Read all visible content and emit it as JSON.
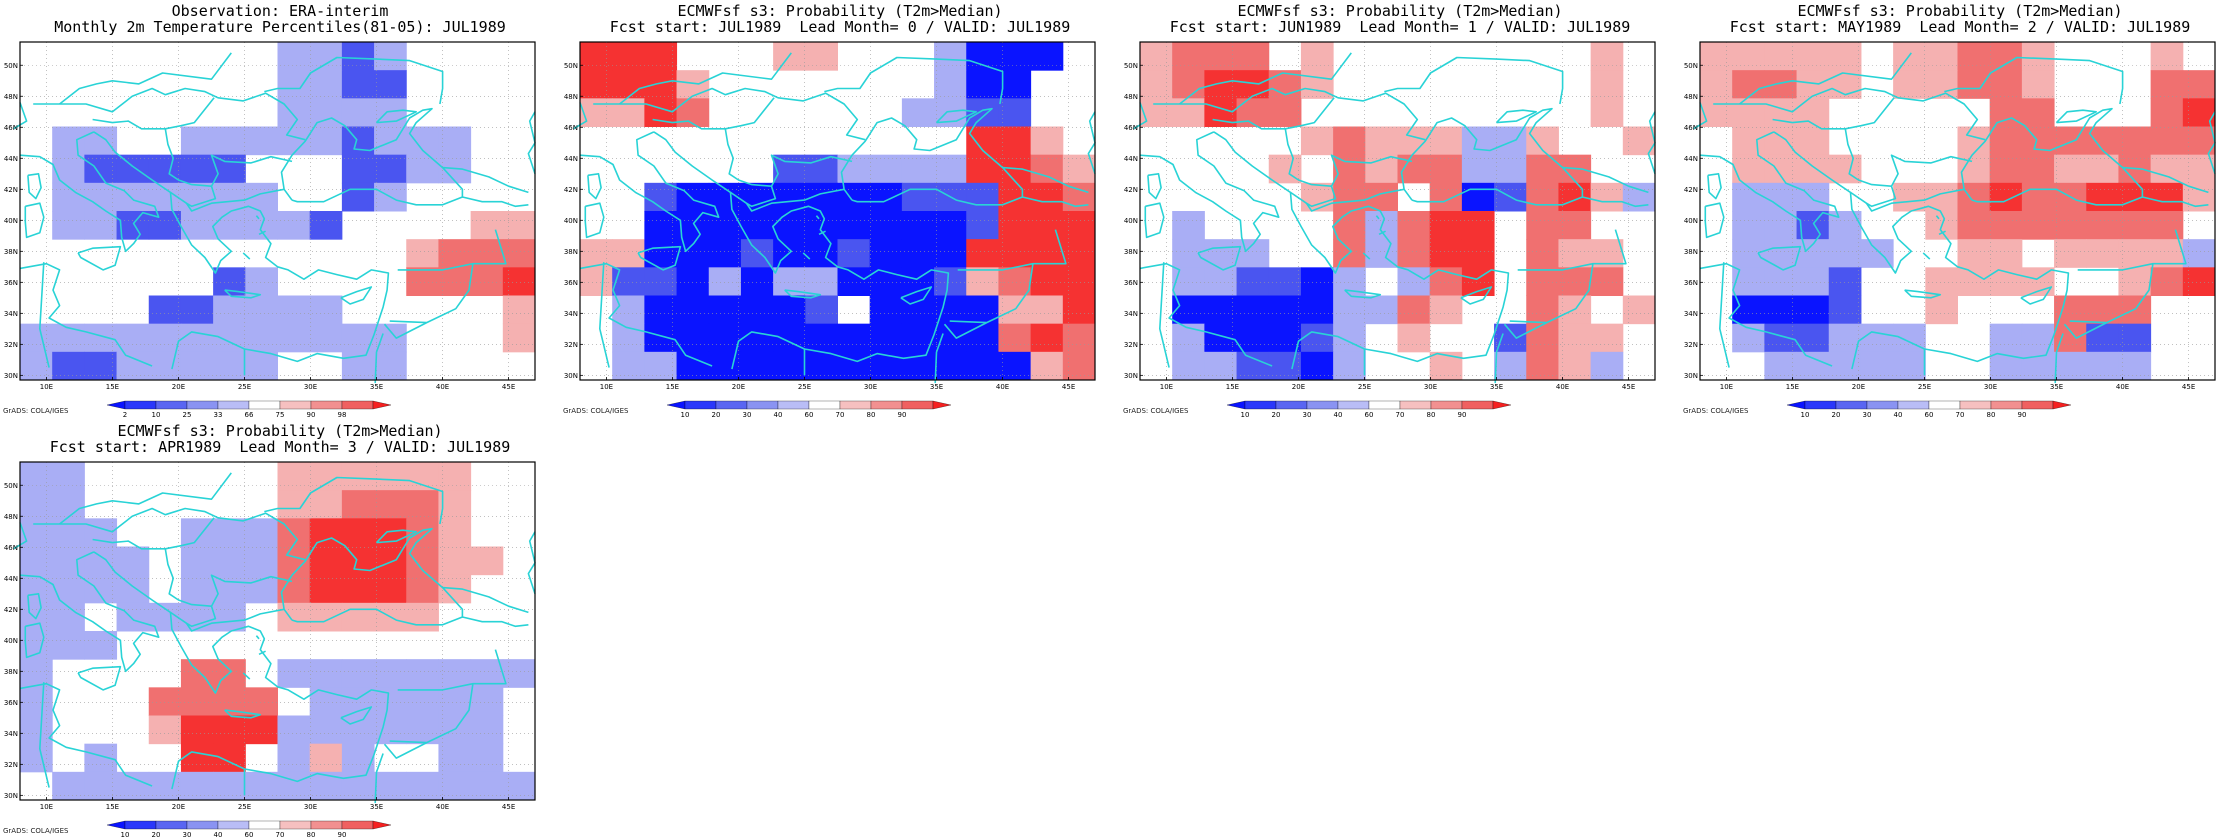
{
  "credit": "GrADS: COLA/IGES",
  "map": {
    "lon_labels": [
      "10E",
      "15E",
      "20E",
      "25E",
      "30E",
      "35E",
      "40E",
      "45E"
    ],
    "lat_labels": [
      "30N",
      "32N",
      "34N",
      "36N",
      "38N",
      "40N",
      "42N",
      "44N",
      "46N",
      "48N",
      "50N"
    ],
    "coast_color": "#29d3d6"
  },
  "colors": {
    "b3": "#0a14ff",
    "b2": "#4050f5",
    "b1": "#7882f0",
    "b0": "#b4b9f5",
    "w": "#ffffff",
    "r0": "#f5b4b4",
    "r1": "#f07878",
    "r2": "#f04646",
    "r3": "#ff1010"
  },
  "panels": [
    {
      "title1": "Observation: ERA-interim",
      "title2": "Monthly 2m Temperature Percentiles(81-05): JUL1989",
      "colorbar": [
        "2",
        "10",
        "25",
        "33",
        "66",
        "75",
        "90",
        "98"
      ],
      "grid": [
        "wwwwwwwwbbcbwwww",
        "wwwwwwwwbbccwwww",
        "wwwwwwwwbbbbwwww",
        "wbbwwbbbbbcbbbww",
        "wbcccccwwwccbbww",
        "wbbbbbbbwwcbwwww",
        "wbbccbbbbcwwwwpp",
        "wwwwwwwwwwwwpqqq",
        "wwwwwwcbwwwwqqqr",
        "wwwwccbbbbwwwwwp",
        "bbbbbbbbbbbbwwwp",
        "bccbbbbbwwbbwwww"
      ]
    },
    {
      "title1": "ECMWFsf s3: Probability (T2m>Median)",
      "title2": "Fcst start: JUL1989  Lead Month= 0 / VALID: JUL1989",
      "colorbar": [
        "10",
        "20",
        "30",
        "40",
        "60",
        "70",
        "80",
        "90"
      ],
      "grid": [
        "rrrwwwppwwwbdddw",
        "rrrpwwwwwwwbddww",
        "pprqwwwwwwbbccww",
        "wwwwwwwwwwwwrrpw",
        "wwwwwwccbbbbrrqp",
        "wwcdddddddcccrrq",
        "wwddddddddddcrrr",
        "ppdddcddcdddrrrr",
        "pccdbdbbdddcpqrr",
        "wbdddddcwddddppr",
        "wbdddddddddddqrq",
        "wbbdddddddddddpq"
      ]
    },
    {
      "title1": "ECMWFsf s3: Probability (T2m>Median)",
      "title2": "Fcst start: JUN1989  Lead Month= 1 / VALID: JUL1989",
      "colorbar": [
        "10",
        "20",
        "30",
        "40",
        "60",
        "70",
        "80",
        "90"
      ],
      "grid": [
        "pqqqwpwwwwwwwwpw",
        "pqrrqpwwwwwwwwpw",
        "pprqqwwwwwwwwwpw",
        "wwwwwpqpppbbpwwp",
        "wwwwpwqpqqbbqqww",
        "wwwwwpqqwqdcqrpb",
        "wbwwwwqbqrrwqqww",
        "wbbbwwqbqrrwqppw",
        "wbbccdbwbqrwqqqw",
        "wdddddbbqpwwqpwp",
        "wbdddcbwpwwcqppw",
        "wbbccdbwwpwbqpbw"
      ]
    },
    {
      "title1": "ECMWFsf s3: Probability (T2m>Median)",
      "title2": "Fcst start: MAY1989  Lead Month= 2 / VALID: JUL1989",
      "colorbar": [
        "10",
        "20",
        "30",
        "40",
        "60",
        "70",
        "80",
        "90"
      ],
      "grid": [
        "pppppwppqqpwwwpw",
        "pqqppwppqqpwwwqq",
        "ppppwwwwwqqwwwqr",
        "wpppwwwwpqqqqqqq",
        "wppppwwwpqqppqpp",
        "wbbbwwppqrqqrrrp",
        "wbbcbwwpqqqqqqqw",
        "wbbbbbwwppwppppb",
        "wbbbcwwppppwwpqr",
        "wdddcwwpwwwqqqww",
        "wbccbbbwwbbqccww",
        "wwbbbbbwwbbbbbww"
      ]
    },
    {
      "title1": "ECMWFsf s3: Probability (T2m>Median)",
      "title2": "Fcst start: APR1989  Lead Month= 3 / VALID: JUL1989",
      "colorbar": [
        "10",
        "20",
        "30",
        "40",
        "60",
        "70",
        "80",
        "90"
      ],
      "grid": [
        "bbwwwwwwppppppww",
        "bbwwwwwwppqqqpww",
        "bbbwwbbbqrrrqpww",
        "bbbbwbbbqrrrqppw",
        "bbbbwbbbqrrrqpww",
        "bbwbbbbwpppppwww",
        "bbbwwwwwwwwwwwww",
        "bwwwwqqwbbbbbbbb",
        "bwwwqqqqwbbbbbbw",
        "bwwwprrrbbbbbbbw",
        "bwbwwrrwbpbwwbbw",
        "wbbbbbbbbbbbbbbb"
      ]
    }
  ]
}
